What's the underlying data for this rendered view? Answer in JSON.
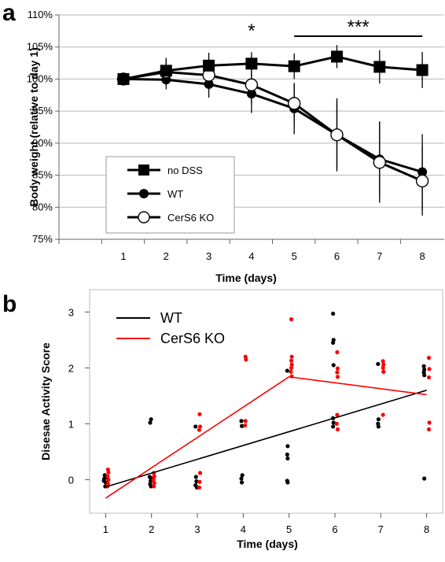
{
  "chart_data": [
    {
      "panel": "a",
      "type": "line",
      "xlabel": "Time (days)",
      "ylabel": "Body weight (relative to day 1)",
      "x": [
        1,
        2,
        3,
        4,
        5,
        6,
        7,
        8
      ],
      "x_tick_labels": [
        "1",
        "2",
        "3",
        "4",
        "5",
        "6",
        "7",
        "8"
      ],
      "ylim": [
        75,
        110
      ],
      "y_tick_labels": [
        "75%",
        "80%",
        "85%",
        "90%",
        "95%",
        "100%",
        "105%",
        "110%"
      ],
      "y_ticks": [
        75,
        80,
        85,
        90,
        95,
        100,
        105,
        110
      ],
      "legend_position": "bottom-left",
      "series": [
        {
          "name": "no DSS",
          "marker": "filled-square",
          "values": [
            100,
            101.3,
            102.1,
            102.4,
            102.0,
            103.5,
            101.9,
            101.4
          ],
          "errors": [
            0,
            2.0,
            2.0,
            1.8,
            2.0,
            1.8,
            2.6,
            2.8
          ]
        },
        {
          "name": "WT",
          "marker": "filled-circle",
          "values": [
            100,
            99.9,
            99.2,
            97.7,
            95.4,
            91.3,
            87.5,
            85.5
          ],
          "errors": [
            0,
            1.5,
            2.1,
            3.0,
            4.0,
            5.7,
            5.9,
            5.9
          ]
        },
        {
          "name": "CerS6 KO",
          "marker": "open-circle",
          "values": [
            100,
            101.1,
            100.6,
            99.1,
            96.2,
            91.3,
            87.0,
            84.1
          ],
          "errors": [
            0,
            1.8,
            2.3,
            2.9,
            3.0,
            5.3,
            6.3,
            5.4
          ]
        }
      ],
      "annotations": [
        {
          "text": "*",
          "x": 4
        },
        {
          "text": "***",
          "x_from": 5,
          "x_to": 8
        }
      ]
    },
    {
      "panel": "b",
      "type": "scatter",
      "xlabel": "Time (days)",
      "ylabel": "Disesae Activity  Score",
      "xlim": [
        0.65,
        8.35
      ],
      "ylim": [
        -0.6,
        3.4
      ],
      "x_tick_labels": [
        "1",
        "2",
        "3",
        "4",
        "5",
        "6",
        "7",
        "8"
      ],
      "y_tick_labels": [
        "0",
        "1",
        "2",
        "3"
      ],
      "y_ticks": [
        0,
        1,
        2,
        3
      ],
      "legend_position": "top-left",
      "series": [
        {
          "name": "WT",
          "color": "#000000",
          "points": [
            [
              0.97,
              0.02
            ],
            [
              0.98,
              0.08
            ],
            [
              1.0,
              -0.05
            ],
            [
              0.96,
              -0.02
            ],
            [
              1.01,
              0.04
            ],
            [
              0.99,
              -0.12
            ],
            [
              1.97,
              1.02
            ],
            [
              1.99,
              1.08
            ],
            [
              1.96,
              0.05
            ],
            [
              1.98,
              -0.02
            ],
            [
              2.0,
              0.02
            ],
            [
              1.97,
              -0.08
            ],
            [
              1.99,
              -0.12
            ],
            [
              2.96,
              0.95
            ],
            [
              2.97,
              0.05
            ],
            [
              2.98,
              -0.03
            ],
            [
              2.96,
              -0.1
            ],
            [
              2.99,
              -0.14
            ],
            [
              3.96,
              1.05
            ],
            [
              3.97,
              0.96
            ],
            [
              3.98,
              0.08
            ],
            [
              3.96,
              0.02
            ],
            [
              3.97,
              -0.05
            ],
            [
              4.96,
              1.95
            ],
            [
              4.97,
              0.6
            ],
            [
              4.96,
              0.45
            ],
            [
              4.97,
              0.38
            ],
            [
              4.96,
              -0.02
            ],
            [
              4.97,
              -0.05
            ],
            [
              5.96,
              2.97
            ],
            [
              5.97,
              2.5
            ],
            [
              5.96,
              2.45
            ],
            [
              5.97,
              2.05
            ],
            [
              5.96,
              1.1
            ],
            [
              5.97,
              1.02
            ],
            [
              5.96,
              0.95
            ],
            [
              6.94,
              2.07
            ],
            [
              6.95,
              1.08
            ],
            [
              6.94,
              1.0
            ],
            [
              6.95,
              0.95
            ],
            [
              7.94,
              2.03
            ],
            [
              7.95,
              1.97
            ],
            [
              7.94,
              1.92
            ],
            [
              7.95,
              1.87
            ],
            [
              7.95,
              0.02
            ]
          ]
        },
        {
          "name": "CerS6 KO",
          "color": "#ff0000",
          "points": [
            [
              1.05,
              0.18
            ],
            [
              1.06,
              0.13
            ],
            [
              1.04,
              0.06
            ],
            [
              1.06,
              0.0
            ],
            [
              1.05,
              -0.07
            ],
            [
              1.04,
              -0.12
            ],
            [
              2.05,
              0.12
            ],
            [
              2.06,
              0.06
            ],
            [
              2.04,
              0.0
            ],
            [
              2.06,
              -0.06
            ],
            [
              2.05,
              -0.12
            ],
            [
              3.05,
              1.17
            ],
            [
              3.06,
              0.95
            ],
            [
              3.04,
              0.89
            ],
            [
              3.06,
              0.12
            ],
            [
              3.05,
              -0.04
            ],
            [
              3.04,
              -0.14
            ],
            [
              4.05,
              2.2
            ],
            [
              4.06,
              2.15
            ],
            [
              4.05,
              1.05
            ],
            [
              4.04,
              0.97
            ],
            [
              5.05,
              2.87
            ],
            [
              5.06,
              2.2
            ],
            [
              5.05,
              2.13
            ],
            [
              5.06,
              2.06
            ],
            [
              5.05,
              2.0
            ],
            [
              5.04,
              1.93
            ],
            [
              5.06,
              1.85
            ],
            [
              6.05,
              2.28
            ],
            [
              6.06,
              1.99
            ],
            [
              6.05,
              1.92
            ],
            [
              6.06,
              1.84
            ],
            [
              6.05,
              1.16
            ],
            [
              6.04,
              1.0
            ],
            [
              6.06,
              0.9
            ],
            [
              7.05,
              2.12
            ],
            [
              7.06,
              2.06
            ],
            [
              7.05,
              2.0
            ],
            [
              7.06,
              1.93
            ],
            [
              7.05,
              1.16
            ],
            [
              8.05,
              2.18
            ],
            [
              8.06,
              1.98
            ],
            [
              8.05,
              1.83
            ],
            [
              8.06,
              1.02
            ],
            [
              8.05,
              0.9
            ]
          ]
        }
      ],
      "trend_lines": [
        {
          "name": "WT",
          "color": "#000000",
          "from": [
            1,
            -0.13
          ],
          "to": [
            8,
            1.6
          ]
        },
        {
          "name": "CerS6 KO",
          "color": "#ff0000",
          "polyline": [
            [
              1,
              -0.33
            ],
            [
              5,
              1.84
            ],
            [
              8,
              1.52
            ]
          ]
        }
      ]
    }
  ]
}
